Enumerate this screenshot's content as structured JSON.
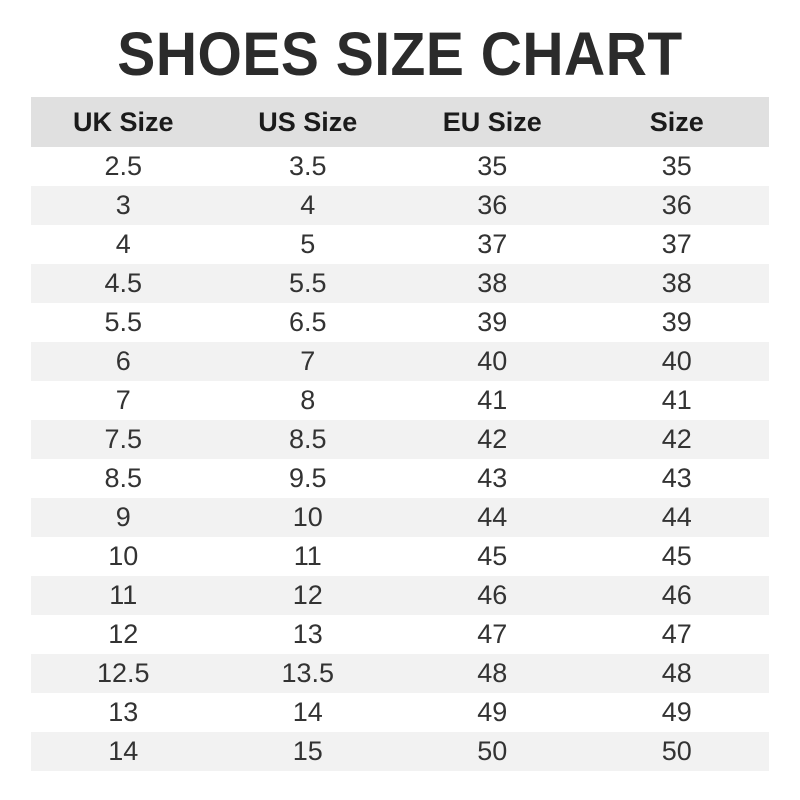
{
  "page": {
    "title": "SHOES SIZE CHART"
  },
  "chart_data": {
    "type": "table",
    "title": "SHOES SIZE CHART",
    "columns": [
      "UK Size",
      "US Size",
      "EU Size",
      "Size"
    ],
    "rows": [
      [
        "2.5",
        "3.5",
        "35",
        "35"
      ],
      [
        "3",
        "4",
        "36",
        "36"
      ],
      [
        "4",
        "5",
        "37",
        "37"
      ],
      [
        "4.5",
        "5.5",
        "38",
        "38"
      ],
      [
        "5.5",
        "6.5",
        "39",
        "39"
      ],
      [
        "6",
        "7",
        "40",
        "40"
      ],
      [
        "7",
        "8",
        "41",
        "41"
      ],
      [
        "7.5",
        "8.5",
        "42",
        "42"
      ],
      [
        "8.5",
        "9.5",
        "43",
        "43"
      ],
      [
        "9",
        "10",
        "44",
        "44"
      ],
      [
        "10",
        "11",
        "45",
        "45"
      ],
      [
        "11",
        "12",
        "46",
        "46"
      ],
      [
        "12",
        "13",
        "47",
        "47"
      ],
      [
        "12.5",
        "13.5",
        "48",
        "48"
      ],
      [
        "13",
        "14",
        "49",
        "49"
      ],
      [
        "14",
        "15",
        "50",
        "50"
      ]
    ],
    "layout": {
      "alternating_rows": true,
      "grid": "off",
      "header_position": "top"
    },
    "colors": {
      "header_bg": "#e0e0e0",
      "row_alt_bg": "#f2f2f2",
      "row_bg": "#ffffff",
      "text": "#333333",
      "title_color": "#2b2b2b"
    }
  }
}
